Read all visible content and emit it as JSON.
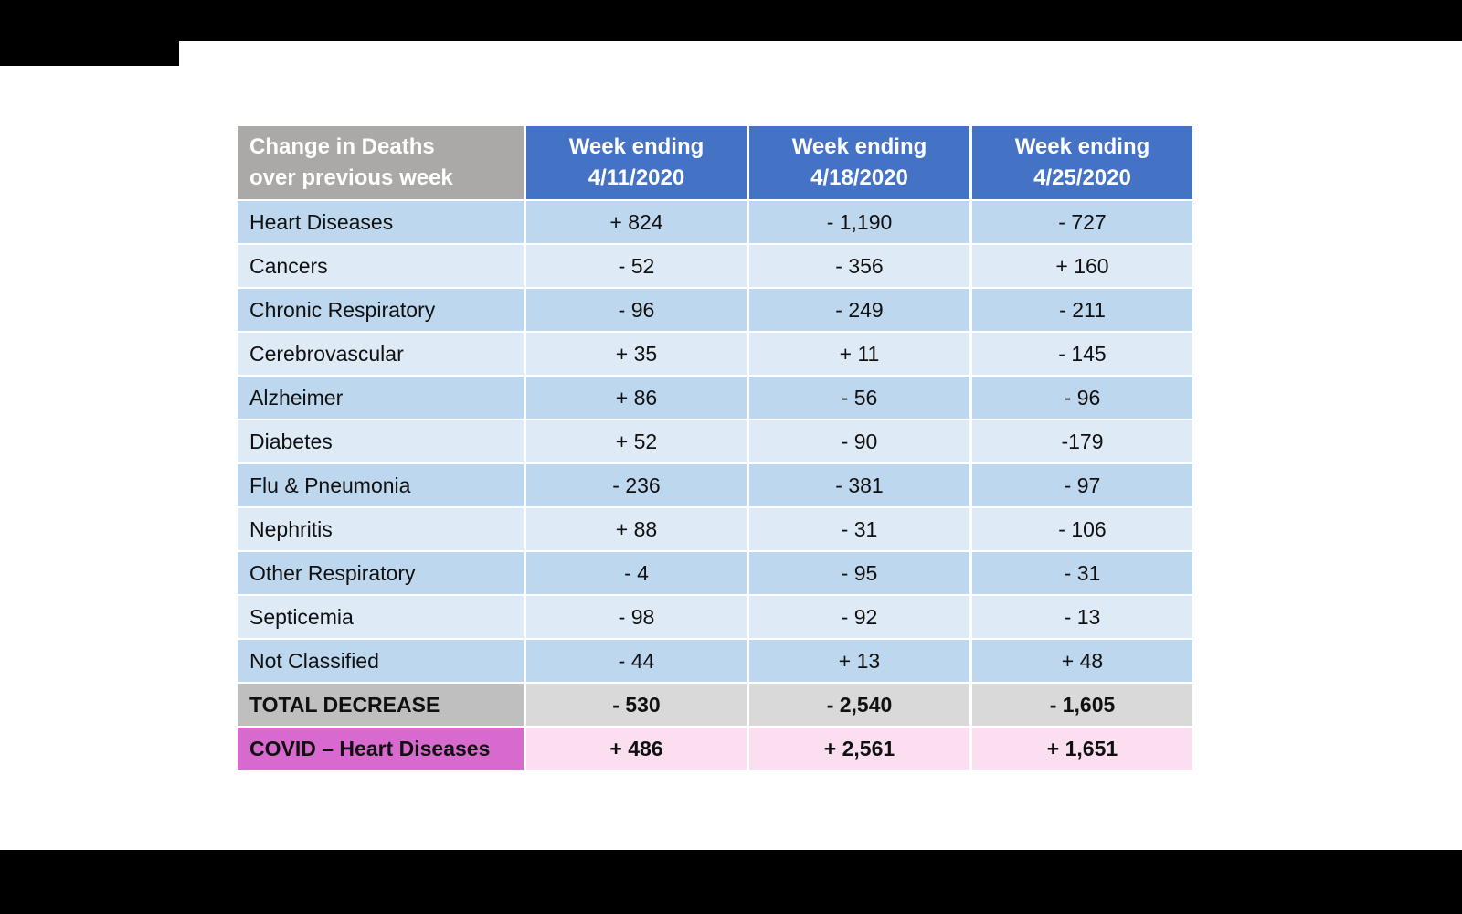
{
  "table": {
    "header": {
      "corner": {
        "line1": "Change in Deaths",
        "line2": "over previous week"
      },
      "columns": [
        {
          "line1": "Week ending",
          "line2": "4/11/2020"
        },
        {
          "line1": "Week ending",
          "line2": "4/18/2020"
        },
        {
          "line1": "Week ending",
          "line2": "4/25/2020"
        }
      ]
    },
    "rows": [
      {
        "label": "Heart Diseases",
        "values": [
          "+ 824",
          "- 1,190",
          "- 727"
        ]
      },
      {
        "label": "Cancers",
        "values": [
          "- 52",
          "- 356",
          "+ 160"
        ]
      },
      {
        "label": "Chronic Respiratory",
        "values": [
          "- 96",
          "- 249",
          "- 211"
        ]
      },
      {
        "label": "Cerebrovascular",
        "values": [
          "+ 35",
          "+ 11",
          "- 145"
        ]
      },
      {
        "label": "Alzheimer",
        "values": [
          "+ 86",
          "- 56",
          "- 96"
        ]
      },
      {
        "label": "Diabetes",
        "values": [
          "+ 52",
          "- 90",
          "-179"
        ]
      },
      {
        "label": "Flu & Pneumonia",
        "values": [
          "- 236",
          "- 381",
          "- 97"
        ]
      },
      {
        "label": "Nephritis",
        "values": [
          "+ 88",
          "- 31",
          "- 106"
        ]
      },
      {
        "label": "Other Respiratory",
        "values": [
          "- 4",
          "- 95",
          "- 31"
        ]
      },
      {
        "label": "Septicemia",
        "values": [
          "- 98",
          "- 92",
          "- 13"
        ]
      },
      {
        "label": "Not Classified",
        "values": [
          "- 44",
          "+ 13",
          "+ 48"
        ]
      }
    ],
    "total_row": {
      "label": "TOTAL DECREASE",
      "values": [
        "- 530",
        "- 2,540",
        "- 1,605"
      ]
    },
    "covid_row": {
      "label": "COVID – Heart Diseases",
      "values": [
        "+ 486",
        "+ 2,561",
        "+ 1,651"
      ]
    },
    "colors": {
      "header_blue": "#4472c4",
      "header_gray": "#aba8a8",
      "row_dark_blue": "#bdd7ee",
      "row_light_blue": "#deebf7",
      "total_label_gray": "#bfbfbf",
      "total_cell_gray": "#d9d9d9",
      "covid_label_magenta": "#d869ce",
      "covid_cell_pink": "#fbdff0"
    }
  },
  "chart_data": {
    "type": "table",
    "title": "Change in Deaths over previous week",
    "columns": [
      "Week ending 4/11/2020",
      "Week ending 4/18/2020",
      "Week ending 4/25/2020"
    ],
    "rows": [
      {
        "label": "Heart Diseases",
        "values": [
          824,
          -1190,
          -727
        ]
      },
      {
        "label": "Cancers",
        "values": [
          -52,
          -356,
          160
        ]
      },
      {
        "label": "Chronic Respiratory",
        "values": [
          -96,
          -249,
          -211
        ]
      },
      {
        "label": "Cerebrovascular",
        "values": [
          35,
          11,
          -145
        ]
      },
      {
        "label": "Alzheimer",
        "values": [
          86,
          -56,
          -96
        ]
      },
      {
        "label": "Diabetes",
        "values": [
          52,
          -90,
          -179
        ]
      },
      {
        "label": "Flu & Pneumonia",
        "values": [
          -236,
          -381,
          -97
        ]
      },
      {
        "label": "Nephritis",
        "values": [
          88,
          -31,
          -106
        ]
      },
      {
        "label": "Other Respiratory",
        "values": [
          -4,
          -95,
          -31
        ]
      },
      {
        "label": "Septicemia",
        "values": [
          -98,
          -92,
          -13
        ]
      },
      {
        "label": "Not Classified",
        "values": [
          -44,
          13,
          48
        ]
      },
      {
        "label": "TOTAL DECREASE",
        "values": [
          -530,
          -2540,
          -1605
        ]
      },
      {
        "label": "COVID – Heart Diseases",
        "values": [
          486,
          2561,
          1651
        ]
      }
    ]
  }
}
